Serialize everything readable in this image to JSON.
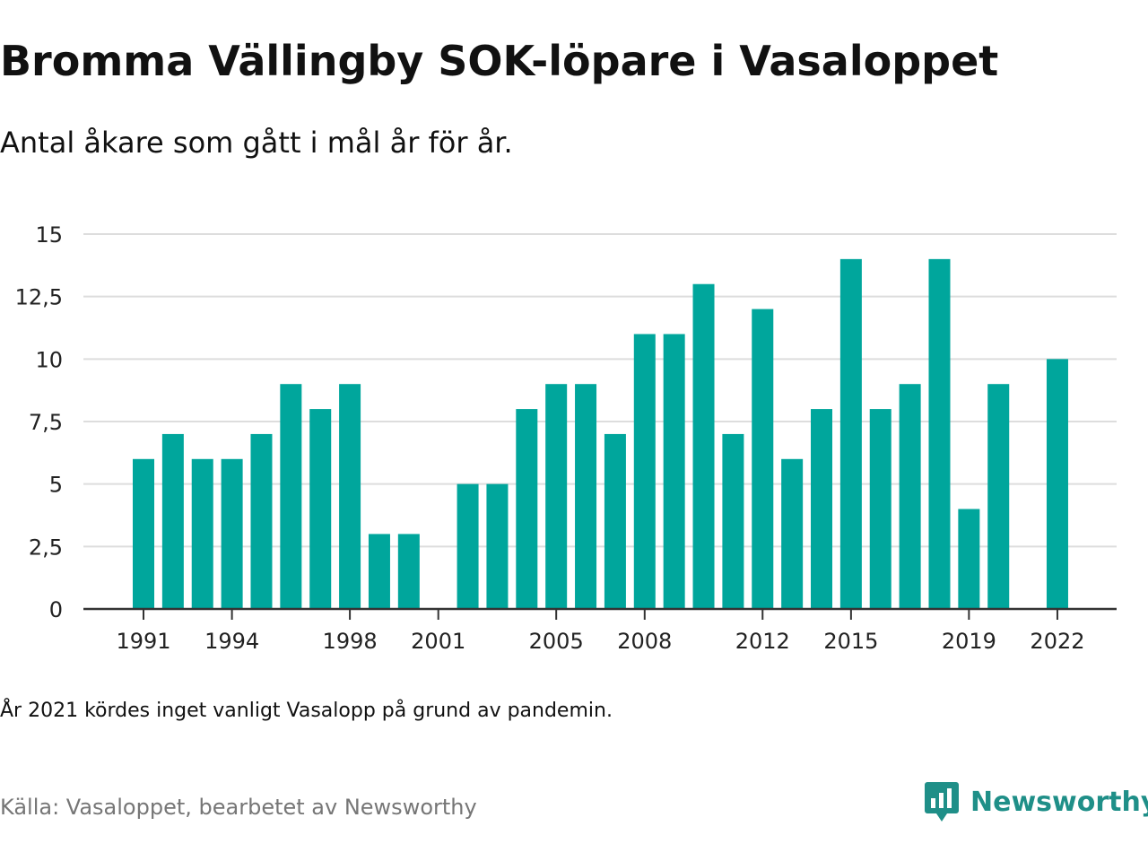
{
  "header": {
    "title": "Bromma Vällingby SOK-löpare i Vasaloppet",
    "subtitle": "Antal åkare som gått i mål år för år."
  },
  "footer": {
    "note": "År 2021 kördes inget vanligt Vasalopp på grund av pandemin.",
    "source": "Källa: Vasaloppet, bearbetet av Newsworthy",
    "logo_text": "Newsworthy"
  },
  "colors": {
    "bar": "#00a69c",
    "grid": "#dddddd",
    "axis": "#333333",
    "logo": "#1f8f88"
  },
  "chart_data": {
    "type": "bar",
    "title": "Bromma Vällingby SOK-löpare i Vasaloppet",
    "subtitle": "Antal åkare som gått i mål år för år.",
    "xlabel": "",
    "ylabel": "",
    "ylim": [
      0,
      15
    ],
    "yticks": [
      0,
      2.5,
      5,
      7.5,
      10,
      12.5,
      15
    ],
    "ytick_labels": [
      "0",
      "2,5",
      "5",
      "7,5",
      "10",
      "12,5",
      "15"
    ],
    "xtick_labels": [
      "1991",
      "1994",
      "1998",
      "2001",
      "2005",
      "2008",
      "2012",
      "2015",
      "2019",
      "2022"
    ],
    "grid": true,
    "legend": "none",
    "categories": [
      1991,
      1992,
      1993,
      1994,
      1995,
      1996,
      1997,
      1998,
      1999,
      2000,
      2001,
      2002,
      2003,
      2004,
      2005,
      2006,
      2007,
      2008,
      2009,
      2010,
      2011,
      2012,
      2013,
      2014,
      2015,
      2016,
      2017,
      2018,
      2019,
      2020,
      2021,
      2022
    ],
    "values": [
      6,
      7,
      6,
      6,
      7,
      9,
      8,
      9,
      3,
      3,
      0,
      5,
      5,
      8,
      9,
      9,
      7,
      11,
      11,
      13,
      7,
      12,
      6,
      8,
      14,
      8,
      9,
      14,
      4,
      9,
      0,
      10
    ]
  }
}
